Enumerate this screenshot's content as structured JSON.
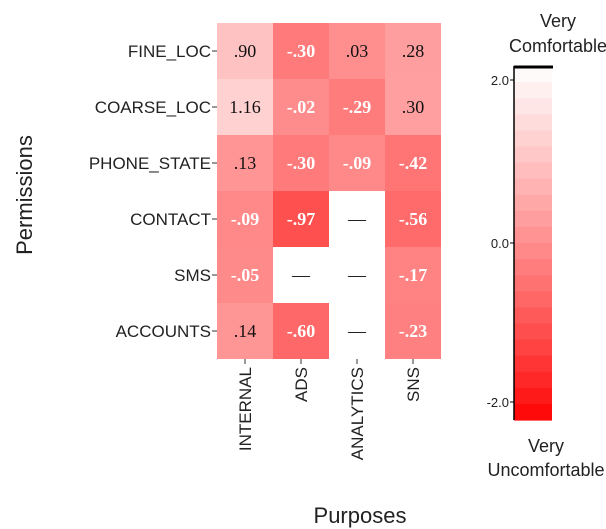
{
  "chart_data": {
    "type": "heatmap",
    "xlabel": "Purposes",
    "ylabel": "Permissions",
    "rows": [
      "FINE_LOC",
      "COARSE_LOC",
      "PHONE_STATE",
      "CONTACT",
      "SMS",
      "ACCOUNTS"
    ],
    "columns": [
      "INTERNAL",
      "ADS",
      "ANALYTICS",
      "SNS"
    ],
    "values": [
      [
        0.9,
        -0.3,
        0.03,
        0.28
      ],
      [
        1.16,
        -0.02,
        -0.29,
        0.3
      ],
      [
        0.13,
        -0.3,
        -0.09,
        -0.42
      ],
      [
        -0.09,
        -0.97,
        null,
        -0.56
      ],
      [
        -0.05,
        null,
        null,
        -0.17
      ],
      [
        0.14,
        -0.6,
        null,
        -0.23
      ]
    ],
    "cell_labels": [
      [
        ".90",
        "-.30",
        ".03",
        ".28"
      ],
      [
        "1.16",
        "-.02",
        "-.29",
        ".30"
      ],
      [
        ".13",
        "-.30",
        "-.09",
        "-.42"
      ],
      [
        "-.09",
        "-.97",
        "—",
        "-.56"
      ],
      [
        "-.05",
        "—",
        "—",
        "-.17"
      ],
      [
        ".14",
        "-.60",
        "—",
        "-.23"
      ]
    ],
    "missing_label": "—",
    "colorbar": {
      "range": [
        -2.0,
        2.0
      ],
      "ticks": [
        "2.0",
        "0.0",
        "-2.0"
      ],
      "top_label": [
        "Very",
        "Comfortable"
      ],
      "bottom_label": [
        "Very",
        "Uncomfortable"
      ],
      "low_color": "#ff0000",
      "high_color": "#ffffff"
    }
  }
}
